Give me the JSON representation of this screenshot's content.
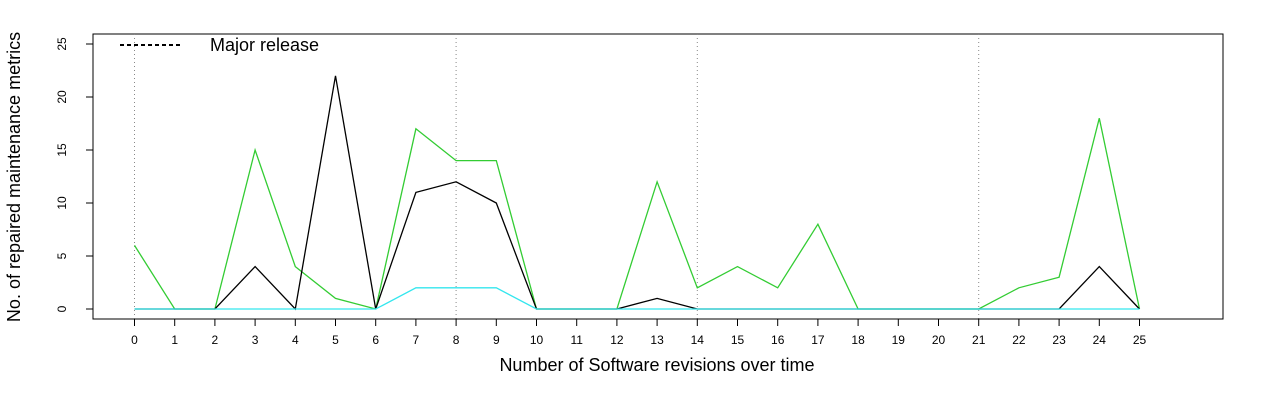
{
  "chart_data": {
    "type": "line",
    "title": "",
    "xlabel": "Number of Software revisions over time",
    "ylabel": "No. of repaired maintenance metrics",
    "xlim": [
      0,
      25
    ],
    "ylim": [
      0,
      25
    ],
    "x": [
      0,
      1,
      2,
      3,
      4,
      5,
      6,
      7,
      8,
      9,
      10,
      11,
      12,
      13,
      14,
      15,
      16,
      17,
      18,
      19,
      20,
      21,
      22,
      23,
      24,
      25
    ],
    "x_tick_labels": [
      "0",
      "1",
      "2",
      "3",
      "4",
      "5",
      "6",
      "7",
      "8",
      "9",
      "10",
      "11",
      "12",
      "13",
      "14",
      "15",
      "16",
      "17",
      "18",
      "19",
      "20",
      "21",
      "22",
      "23",
      "24",
      "25"
    ],
    "y_ticks": [
      0,
      5,
      10,
      15,
      20,
      25
    ],
    "y_tick_labels": [
      "0",
      "5",
      "10",
      "15",
      "20",
      "25"
    ],
    "grid": false,
    "series": [
      {
        "color": "#33cc33",
        "values": [
          6,
          0,
          0,
          15,
          4,
          1,
          0,
          17,
          14,
          14,
          0,
          0,
          0,
          12,
          2,
          4,
          2,
          8,
          0,
          0,
          0,
          0,
          2,
          3,
          18,
          0
        ]
      },
      {
        "color": "#000000",
        "values": [
          0,
          0,
          0,
          4,
          0,
          22,
          0,
          11,
          12,
          10,
          0,
          0,
          0,
          1,
          0,
          0,
          0,
          0,
          0,
          0,
          0,
          0,
          0,
          0,
          4,
          0
        ]
      },
      {
        "color": "#33e6ee",
        "values": [
          0,
          0,
          0,
          0,
          0,
          0,
          0,
          2,
          2,
          2,
          0,
          0,
          0,
          0,
          0,
          0,
          0,
          0,
          0,
          0,
          0,
          0,
          0,
          0,
          0,
          0
        ]
      }
    ],
    "major_releases": [
      0,
      8,
      14,
      21
    ],
    "legend": {
      "position": "top-left",
      "label": "Major release",
      "line_style": "dashed"
    }
  }
}
